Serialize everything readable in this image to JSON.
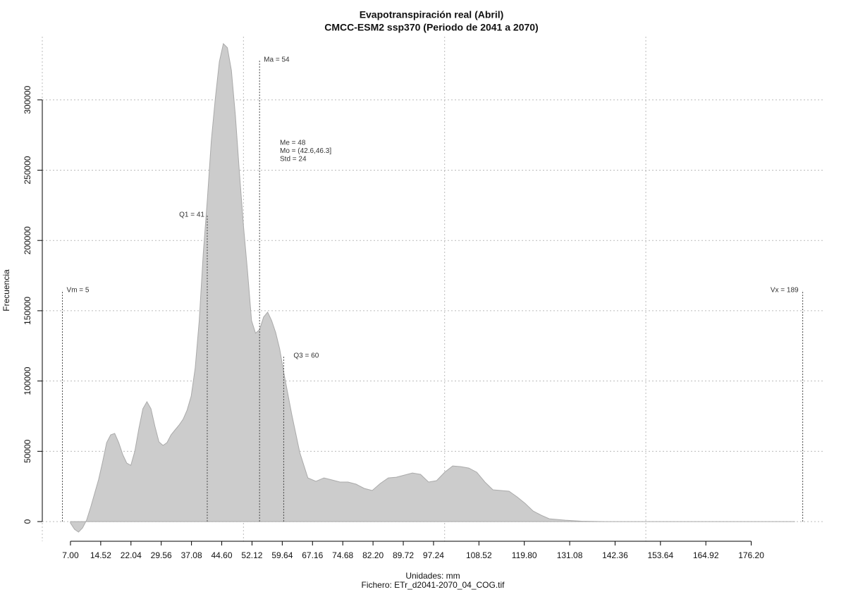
{
  "chart_data": {
    "type": "area",
    "title": "Evapotranspiración real (Abril)",
    "subtitle": "CMCC-ESM2 ssp370 (Periodo de 2041 a 2070)",
    "x_label": "Unidades: mm",
    "caption": "Fichero: ETr_d2041-2070_04_COG.tif",
    "y_label": "Frecuencia",
    "color": "#cccccc",
    "x": [
      7,
      8,
      9,
      10,
      11,
      12,
      13,
      14,
      15,
      16,
      17,
      18,
      19,
      20,
      21,
      22,
      23,
      24,
      25,
      26,
      27,
      28,
      29,
      30,
      31,
      32,
      33,
      34,
      35,
      36,
      37,
      38,
      39,
      40,
      41,
      42,
      43,
      44,
      45,
      46,
      47,
      48,
      49,
      50,
      51,
      52,
      53,
      54,
      55,
      56,
      57,
      58,
      59,
      60,
      62,
      64,
      66,
      68,
      70,
      72,
      74,
      76,
      78,
      80,
      82,
      84,
      86,
      88,
      90,
      92,
      94,
      96,
      98,
      100,
      102,
      104,
      106,
      108,
      110,
      112,
      114,
      116,
      118,
      120,
      122,
      124,
      126,
      128,
      130,
      134,
      140,
      187
    ],
    "values": [
      -1000,
      -5500,
      -7500,
      -4500,
      1000,
      10000,
      20000,
      30000,
      42600,
      56200,
      61700,
      62700,
      56200,
      47700,
      41600,
      40000,
      50200,
      66200,
      80300,
      85300,
      80300,
      67700,
      56700,
      54200,
      56200,
      61700,
      65200,
      68700,
      72800,
      79300,
      89300,
      109400,
      143000,
      190700,
      228300,
      270900,
      301000,
      327100,
      340000,
      337200,
      321100,
      288800,
      248400,
      210700,
      178100,
      143000,
      134000,
      136500,
      145500,
      149000,
      143000,
      134500,
      122900,
      106400,
      76300,
      49200,
      31100,
      28600,
      31100,
      29600,
      28100,
      28100,
      26600,
      23600,
      22100,
      27100,
      31100,
      31600,
      33100,
      34600,
      33600,
      28100,
      29100,
      35100,
      39600,
      39100,
      38100,
      35100,
      28100,
      22600,
      22100,
      21600,
      17600,
      13000,
      7500,
      4500,
      2000,
      1500,
      1000,
      300,
      0,
      0
    ],
    "xlim": [
      0,
      194.5
    ],
    "ylim": [
      -14000,
      345000
    ],
    "xticks": [
      {
        "value": 7,
        "label": "7.00"
      },
      {
        "value": 14.52,
        "label": "14.52"
      },
      {
        "value": 22.04,
        "label": "22.04"
      },
      {
        "value": 29.56,
        "label": "29.56"
      },
      {
        "value": 37.08,
        "label": "37.08"
      },
      {
        "value": 44.6,
        "label": "44.60"
      },
      {
        "value": 52.12,
        "label": "52.12"
      },
      {
        "value": 59.64,
        "label": "59.64"
      },
      {
        "value": 67.16,
        "label": "67.16"
      },
      {
        "value": 74.68,
        "label": "74.68"
      },
      {
        "value": 82.2,
        "label": "82.20"
      },
      {
        "value": 89.72,
        "label": "89.72"
      },
      {
        "value": 97.24,
        "label": "97.24"
      },
      {
        "value": 108.52,
        "label": "108.52"
      },
      {
        "value": 119.8,
        "label": "119.80"
      },
      {
        "value": 131.08,
        "label": "131.08"
      },
      {
        "value": 142.36,
        "label": "142.36"
      },
      {
        "value": 153.64,
        "label": "153.64"
      },
      {
        "value": 164.92,
        "label": "164.92"
      },
      {
        "value": 176.2,
        "label": "176.20"
      }
    ],
    "yticks": [
      0,
      50000,
      100000,
      150000,
      200000,
      250000,
      300000
    ],
    "xgrid": [
      0,
      50,
      100,
      150
    ],
    "grid": true,
    "markers": [
      {
        "label": "Vm = 5",
        "value": 5
      },
      {
        "label": "Q1 = 41",
        "value": 41
      },
      {
        "label": "Ma = 54",
        "value": 54
      },
      {
        "label": "Q3 = 60",
        "value": 60
      },
      {
        "label": "Vx = 189",
        "value": 189
      }
    ],
    "stats": [
      "Me = 48",
      "Mo = (42.6,46.3]",
      "Std = 24"
    ]
  }
}
